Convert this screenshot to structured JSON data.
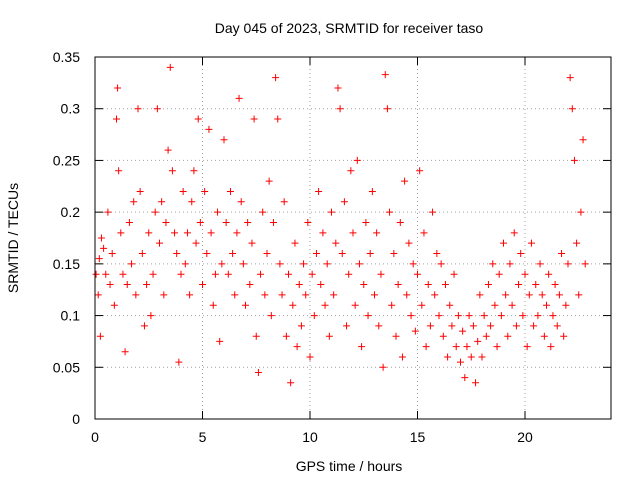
{
  "chart_data": {
    "type": "scatter",
    "title": "Day 045 of 2023, SRMTID for receiver taso",
    "xlabel": "GPS time / hours",
    "ylabel": "SRMTID / TECUs",
    "xlim": [
      0,
      24
    ],
    "ylim": [
      0,
      0.35
    ],
    "x_ticks": [
      0,
      5,
      10,
      15,
      20
    ],
    "y_ticks": [
      0,
      0.05,
      0.1,
      0.15,
      0.2,
      0.25,
      0.3,
      0.35
    ],
    "x_tick_labels": [
      "0",
      "5",
      "10",
      "15",
      "20"
    ],
    "y_tick_labels": [
      "0",
      "0.05",
      "0.1",
      "0.15",
      "0.2",
      "0.25",
      "0.3",
      "0.35"
    ],
    "grid": true,
    "marker": "plus",
    "color": "#ff0000",
    "series": [
      {
        "values": [
          [
            0.05,
            0.14
          ],
          [
            0.15,
            0.12
          ],
          [
            0.2,
            0.155
          ],
          [
            0.25,
            0.08
          ],
          [
            0.3,
            0.175
          ],
          [
            0.4,
            0.165
          ],
          [
            0.5,
            0.14
          ],
          [
            0.6,
            0.2
          ],
          [
            0.7,
            0.13
          ],
          [
            0.8,
            0.16
          ],
          [
            0.9,
            0.11
          ],
          [
            1.0,
            0.29
          ],
          [
            1.05,
            0.32
          ],
          [
            1.1,
            0.24
          ],
          [
            1.2,
            0.18
          ],
          [
            1.3,
            0.14
          ],
          [
            1.4,
            0.065
          ],
          [
            1.5,
            0.13
          ],
          [
            1.6,
            0.19
          ],
          [
            1.7,
            0.15
          ],
          [
            1.8,
            0.21
          ],
          [
            1.9,
            0.12
          ],
          [
            2.0,
            0.3
          ],
          [
            2.1,
            0.22
          ],
          [
            2.2,
            0.16
          ],
          [
            2.3,
            0.09
          ],
          [
            2.4,
            0.13
          ],
          [
            2.5,
            0.18
          ],
          [
            2.6,
            0.1
          ],
          [
            2.7,
            0.14
          ],
          [
            2.8,
            0.2
          ],
          [
            2.9,
            0.3
          ],
          [
            3.0,
            0.17
          ],
          [
            3.1,
            0.21
          ],
          [
            3.2,
            0.12
          ],
          [
            3.3,
            0.19
          ],
          [
            3.4,
            0.26
          ],
          [
            3.5,
            0.34
          ],
          [
            3.6,
            0.24
          ],
          [
            3.7,
            0.18
          ],
          [
            3.8,
            0.16
          ],
          [
            3.9,
            0.055
          ],
          [
            4.0,
            0.14
          ],
          [
            4.1,
            0.22
          ],
          [
            4.2,
            0.15
          ],
          [
            4.3,
            0.18
          ],
          [
            4.4,
            0.12
          ],
          [
            4.5,
            0.21
          ],
          [
            4.6,
            0.24
          ],
          [
            4.7,
            0.17
          ],
          [
            4.8,
            0.29
          ],
          [
            4.9,
            0.19
          ],
          [
            5.0,
            0.13
          ],
          [
            5.1,
            0.22
          ],
          [
            5.2,
            0.16
          ],
          [
            5.3,
            0.28
          ],
          [
            5.4,
            0.18
          ],
          [
            5.5,
            0.11
          ],
          [
            5.6,
            0.14
          ],
          [
            5.7,
            0.2
          ],
          [
            5.8,
            0.075
          ],
          [
            5.9,
            0.15
          ],
          [
            6.0,
            0.27
          ],
          [
            6.1,
            0.19
          ],
          [
            6.2,
            0.14
          ],
          [
            6.3,
            0.22
          ],
          [
            6.4,
            0.16
          ],
          [
            6.5,
            0.12
          ],
          [
            6.6,
            0.18
          ],
          [
            6.7,
            0.31
          ],
          [
            6.8,
            0.21
          ],
          [
            6.9,
            0.15
          ],
          [
            7.0,
            0.11
          ],
          [
            7.1,
            0.19
          ],
          [
            7.2,
            0.13
          ],
          [
            7.3,
            0.17
          ],
          [
            7.4,
            0.29
          ],
          [
            7.5,
            0.08
          ],
          [
            7.6,
            0.045
          ],
          [
            7.7,
            0.14
          ],
          [
            7.8,
            0.2
          ],
          [
            7.9,
            0.12
          ],
          [
            8.0,
            0.16
          ],
          [
            8.1,
            0.23
          ],
          [
            8.2,
            0.1
          ],
          [
            8.3,
            0.19
          ],
          [
            8.4,
            0.33
          ],
          [
            8.5,
            0.29
          ],
          [
            8.6,
            0.15
          ],
          [
            8.7,
            0.12
          ],
          [
            8.8,
            0.21
          ],
          [
            8.9,
            0.08
          ],
          [
            9.0,
            0.14
          ],
          [
            9.1,
            0.035
          ],
          [
            9.2,
            0.11
          ],
          [
            9.3,
            0.17
          ],
          [
            9.4,
            0.07
          ],
          [
            9.5,
            0.13
          ],
          [
            9.6,
            0.09
          ],
          [
            9.7,
            0.15
          ],
          [
            9.8,
            0.12
          ],
          [
            9.9,
            0.19
          ],
          [
            10.0,
            0.06
          ],
          [
            10.1,
            0.14
          ],
          [
            10.2,
            0.1
          ],
          [
            10.3,
            0.16
          ],
          [
            10.4,
            0.22
          ],
          [
            10.5,
            0.13
          ],
          [
            10.6,
            0.18
          ],
          [
            10.7,
            0.11
          ],
          [
            10.8,
            0.15
          ],
          [
            10.9,
            0.08
          ],
          [
            11.0,
            0.2
          ],
          [
            11.1,
            0.12
          ],
          [
            11.2,
            0.17
          ],
          [
            11.3,
            0.32
          ],
          [
            11.4,
            0.3
          ],
          [
            11.5,
            0.16
          ],
          [
            11.6,
            0.21
          ],
          [
            11.7,
            0.09
          ],
          [
            11.8,
            0.14
          ],
          [
            11.9,
            0.24
          ],
          [
            12.0,
            0.18
          ],
          [
            12.1,
            0.11
          ],
          [
            12.2,
            0.25
          ],
          [
            12.3,
            0.15
          ],
          [
            12.4,
            0.07
          ],
          [
            12.5,
            0.13
          ],
          [
            12.6,
            0.19
          ],
          [
            12.7,
            0.1
          ],
          [
            12.8,
            0.16
          ],
          [
            12.9,
            0.22
          ],
          [
            13.0,
            0.12
          ],
          [
            13.1,
            0.18
          ],
          [
            13.2,
            0.09
          ],
          [
            13.3,
            0.14
          ],
          [
            13.4,
            0.05
          ],
          [
            13.5,
            0.333
          ],
          [
            13.6,
            0.3
          ],
          [
            13.7,
            0.2
          ],
          [
            13.8,
            0.11
          ],
          [
            13.9,
            0.16
          ],
          [
            14.0,
            0.08
          ],
          [
            14.1,
            0.13
          ],
          [
            14.2,
            0.19
          ],
          [
            14.3,
            0.06
          ],
          [
            14.4,
            0.23
          ],
          [
            14.5,
            0.12
          ],
          [
            14.6,
            0.17
          ],
          [
            14.7,
            0.1
          ],
          [
            14.8,
            0.15
          ],
          [
            14.9,
            0.085
          ],
          [
            15.0,
            0.14
          ],
          [
            15.1,
            0.24
          ],
          [
            15.2,
            0.11
          ],
          [
            15.3,
            0.18
          ],
          [
            15.4,
            0.07
          ],
          [
            15.5,
            0.13
          ],
          [
            15.6,
            0.09
          ],
          [
            15.7,
            0.2
          ],
          [
            15.8,
            0.12
          ],
          [
            15.9,
            0.16
          ],
          [
            16.0,
            0.1
          ],
          [
            16.1,
            0.15
          ],
          [
            16.2,
            0.08
          ],
          [
            16.3,
            0.13
          ],
          [
            16.4,
            0.06
          ],
          [
            16.5,
            0.11
          ],
          [
            16.6,
            0.09
          ],
          [
            16.7,
            0.14
          ],
          [
            16.8,
            0.07
          ],
          [
            16.9,
            0.1
          ],
          [
            17.0,
            0.055
          ],
          [
            17.1,
            0.085
          ],
          [
            17.2,
            0.04
          ],
          [
            17.3,
            0.07
          ],
          [
            17.4,
            0.1
          ],
          [
            17.5,
            0.06
          ],
          [
            17.6,
            0.09
          ],
          [
            17.7,
            0.035
          ],
          [
            17.8,
            0.075
          ],
          [
            17.9,
            0.12
          ],
          [
            18.0,
            0.06
          ],
          [
            18.1,
            0.1
          ],
          [
            18.2,
            0.08
          ],
          [
            18.3,
            0.13
          ],
          [
            18.4,
            0.09
          ],
          [
            18.5,
            0.15
          ],
          [
            18.6,
            0.11
          ],
          [
            18.7,
            0.07
          ],
          [
            18.8,
            0.14
          ],
          [
            18.9,
            0.1
          ],
          [
            19.0,
            0.17
          ],
          [
            19.1,
            0.12
          ],
          [
            19.2,
            0.08
          ],
          [
            19.3,
            0.15
          ],
          [
            19.4,
            0.11
          ],
          [
            19.5,
            0.18
          ],
          [
            19.6,
            0.09
          ],
          [
            19.7,
            0.13
          ],
          [
            19.8,
            0.16
          ],
          [
            19.9,
            0.1
          ],
          [
            20.0,
            0.14
          ],
          [
            20.1,
            0.07
          ],
          [
            20.2,
            0.12
          ],
          [
            20.3,
            0.17
          ],
          [
            20.4,
            0.09
          ],
          [
            20.5,
            0.13
          ],
          [
            20.6,
            0.1
          ],
          [
            20.7,
            0.15
          ],
          [
            20.8,
            0.12
          ],
          [
            20.9,
            0.08
          ],
          [
            21.0,
            0.11
          ],
          [
            21.1,
            0.14
          ],
          [
            21.2,
            0.07
          ],
          [
            21.3,
            0.1
          ],
          [
            21.4,
            0.13
          ],
          [
            21.5,
            0.09
          ],
          [
            21.6,
            0.12
          ],
          [
            21.7,
            0.16
          ],
          [
            21.8,
            0.08
          ],
          [
            21.9,
            0.11
          ],
          [
            22.0,
            0.15
          ],
          [
            22.1,
            0.33
          ],
          [
            22.2,
            0.3
          ],
          [
            22.3,
            0.25
          ],
          [
            22.4,
            0.17
          ],
          [
            22.5,
            0.12
          ],
          [
            22.6,
            0.2
          ],
          [
            22.7,
            0.27
          ],
          [
            22.8,
            0.15
          ]
        ]
      }
    ]
  }
}
